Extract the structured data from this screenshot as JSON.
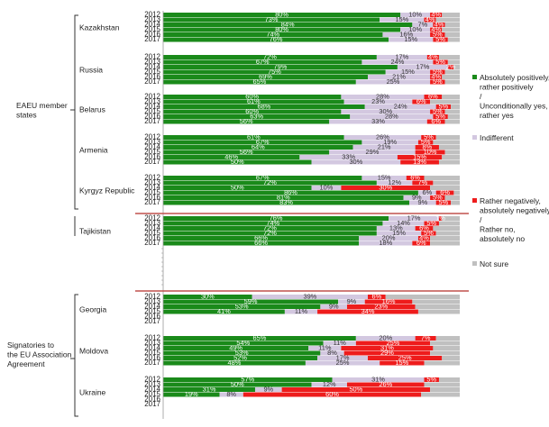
{
  "chart_data": {
    "type": "bar",
    "stacked": true,
    "orientation": "horizontal",
    "xlim": [
      0,
      100
    ],
    "grid": false,
    "legend_placement": "right",
    "colors": {
      "positive": "#1a8a1a",
      "indifferent": "#d3c8e0",
      "negative": "#ee1c1c",
      "not_sure": "#c0c0c0"
    },
    "series": [
      {
        "key": "positive",
        "name": "Absolutely positively, rather positively / Unconditionally yes, rather yes"
      },
      {
        "key": "indifferent",
        "name": "Indifferent"
      },
      {
        "key": "negative",
        "name": "Rather negatively, absolutely negatively / Rather no, absolutely no"
      },
      {
        "key": "not_sure",
        "name": "Not sure"
      }
    ],
    "bracket_labels": [
      {
        "label": "EAEU member states",
        "from_group": 0,
        "to_group": 5
      },
      {
        "label": "Signatories to the EU Association Agreement",
        "from_group": 6,
        "to_group": 8
      }
    ],
    "groups": [
      {
        "label": "Kazakhstan",
        "rows": [
          {
            "year": "2012",
            "positive": 80,
            "indifferent": 10,
            "negative": 4,
            "not_sure": 6,
            "labels": [
              "80%",
              "10%",
              "4%"
            ]
          },
          {
            "year": "2013",
            "positive": 73,
            "indifferent": 15,
            "negative": 4,
            "not_sure": 8,
            "labels": [
              "73%",
              "15%",
              "4%"
            ]
          },
          {
            "year": "2014",
            "positive": 84,
            "indifferent": 7,
            "negative": 4,
            "not_sure": 5,
            "labels": [
              "84%",
              "7%",
              "4%"
            ]
          },
          {
            "year": "2015",
            "positive": 80,
            "indifferent": 10,
            "negative": 4,
            "not_sure": 6,
            "labels": [
              "80%",
              "10%",
              "4%"
            ]
          },
          {
            "year": "2016",
            "positive": 74,
            "indifferent": 16,
            "negative": 5,
            "not_sure": 5,
            "labels": [
              "74%",
              "16%",
              "5%"
            ]
          },
          {
            "year": "2017",
            "positive": 76,
            "indifferent": 15,
            "negative": 5,
            "not_sure": 4,
            "labels": [
              "76%",
              "15%",
              "5%"
            ]
          }
        ]
      },
      {
        "label": "Russia",
        "rows": [
          {
            "year": "2012",
            "positive": 72,
            "indifferent": 17,
            "negative": 4,
            "not_sure": 7,
            "labels": [
              "72%",
              "17%",
              "4%"
            ]
          },
          {
            "year": "2013",
            "positive": 67,
            "indifferent": 24,
            "negative": 5,
            "not_sure": 4,
            "labels": [
              "67%",
              "24%",
              "5%"
            ]
          },
          {
            "year": "2014",
            "positive": 79,
            "indifferent": 17,
            "negative": 2,
            "not_sure": 2,
            "labels": [
              "79%",
              "17%",
              "2%"
            ]
          },
          {
            "year": "2015",
            "positive": 75,
            "indifferent": 15,
            "negative": 5,
            "not_sure": 5,
            "labels": [
              "75%",
              "15%",
              "5%"
            ]
          },
          {
            "year": "2016",
            "positive": 69,
            "indifferent": 21,
            "negative": 4,
            "not_sure": 6,
            "labels": [
              "69%",
              "21%",
              "4%"
            ]
          },
          {
            "year": "2017",
            "positive": 65,
            "indifferent": 25,
            "negative": 5,
            "not_sure": 5,
            "labels": [
              "65%",
              "25%",
              "5%"
            ]
          }
        ]
      },
      {
        "label": "Belarus",
        "rows": [
          {
            "year": "2012",
            "positive": 60,
            "indifferent": 28,
            "negative": 6,
            "not_sure": 6,
            "labels": [
              "60%",
              "28%",
              "6%"
            ]
          },
          {
            "year": "2013",
            "positive": 61,
            "indifferent": 23,
            "negative": 6,
            "not_sure": 10,
            "labels": [
              "61%",
              "23%",
              "6%"
            ]
          },
          {
            "year": "2014",
            "positive": 68,
            "indifferent": 24,
            "negative": 5,
            "not_sure": 3,
            "labels": [
              "68%",
              "24%",
              "5%"
            ]
          },
          {
            "year": "2015",
            "positive": 60,
            "indifferent": 30,
            "negative": 5,
            "not_sure": 5,
            "labels": [
              "60%",
              "30%",
              "5%"
            ]
          },
          {
            "year": "2016",
            "positive": 63,
            "indifferent": 28,
            "negative": 5,
            "not_sure": 4,
            "labels": [
              "63%",
              "28%",
              "5%"
            ]
          },
          {
            "year": "2017",
            "positive": 56,
            "indifferent": 33,
            "negative": 6,
            "not_sure": 5,
            "labels": [
              "56%",
              "33%",
              "6%"
            ]
          }
        ]
      },
      {
        "label": "Armenia",
        "rows": [
          {
            "year": "2012",
            "positive": 61,
            "indifferent": 26,
            "negative": 5,
            "not_sure": 8,
            "labels": [
              "61%",
              "26%",
              "5%"
            ]
          },
          {
            "year": "2013",
            "positive": 67,
            "indifferent": 19,
            "negative": 5,
            "not_sure": 9,
            "labels": [
              "67%",
              "19%",
              "5%"
            ]
          },
          {
            "year": "2014",
            "positive": 64,
            "indifferent": 21,
            "negative": 8,
            "not_sure": 7,
            "labels": [
              "64%",
              "21%",
              "8%"
            ]
          },
          {
            "year": "2015",
            "positive": 56,
            "indifferent": 29,
            "negative": 10,
            "not_sure": 5,
            "labels": [
              "56%",
              "29%",
              "10%"
            ]
          },
          {
            "year": "2016",
            "positive": 46,
            "indifferent": 33,
            "negative": 15,
            "not_sure": 6,
            "labels": [
              "46%",
              "33%",
              "15%"
            ]
          },
          {
            "year": "2017",
            "positive": 50,
            "indifferent": 30,
            "negative": 13,
            "not_sure": 7,
            "labels": [
              "50%",
              "30%",
              "13%"
            ]
          }
        ]
      },
      {
        "label": "Kyrgyz Republic",
        "rows": [
          {
            "year": "2012",
            "positive": 67,
            "indifferent": 15,
            "negative": 6,
            "not_sure": 12,
            "labels": [
              "67%",
              "15%",
              "6%"
            ]
          },
          {
            "year": "2013",
            "positive": 72,
            "indifferent": 12,
            "negative": 7,
            "not_sure": 9,
            "labels": [
              "72%",
              "12%",
              "7%"
            ]
          },
          {
            "year": "2014",
            "positive": 50,
            "indifferent": 10,
            "negative": 30,
            "not_sure": 10,
            "labels": [
              "50%",
              "10%",
              "30%"
            ]
          },
          {
            "year": "2015",
            "positive": 86,
            "indifferent": 6,
            "negative": 6,
            "not_sure": 2,
            "labels": [
              "86%",
              "6%",
              "6%"
            ]
          },
          {
            "year": "2016",
            "positive": 81,
            "indifferent": 9,
            "negative": 5,
            "not_sure": 5,
            "labels": [
              "81%",
              "9%",
              "5%"
            ]
          },
          {
            "year": "2017",
            "positive": 83,
            "indifferent": 9,
            "negative": 5,
            "not_sure": 3,
            "labels": [
              "83%",
              "9%",
              "5%"
            ]
          }
        ]
      },
      {
        "label": "Tajikistan",
        "rows": [
          {
            "year": "2012",
            "positive": 76,
            "indifferent": 17,
            "negative": 1,
            "not_sure": 6,
            "labels": [
              "76%",
              "17%",
              "1%"
            ]
          },
          {
            "year": "2013",
            "positive": 74,
            "indifferent": 14,
            "negative": 5,
            "not_sure": 7,
            "labels": [
              "74%",
              "14%",
              "5%"
            ]
          },
          {
            "year": "2014",
            "positive": 72,
            "indifferent": 13,
            "negative": 6,
            "not_sure": 9,
            "labels": [
              "72%",
              "13%",
              "6%"
            ]
          },
          {
            "year": "2015",
            "positive": 72,
            "indifferent": 15,
            "negative": 5,
            "not_sure": 8,
            "labels": [
              "72%",
              "15%",
              "5%"
            ]
          },
          {
            "year": "2016",
            "positive": 66,
            "indifferent": 20,
            "negative": 4,
            "not_sure": 10,
            "labels": [
              "66%",
              "20%",
              "4%"
            ]
          },
          {
            "year": "2017",
            "positive": 66,
            "indifferent": 18,
            "negative": 6,
            "not_sure": 10,
            "labels": [
              "66%",
              "18%",
              "6%"
            ]
          }
        ]
      },
      {
        "label": "Georgia",
        "rows": [
          {
            "year": "2012",
            "positive": 30,
            "indifferent": 39,
            "negative": 6,
            "not_sure": 25,
            "labels": [
              "30%",
              "39%",
              "6%"
            ]
          },
          {
            "year": "2013",
            "positive": 59,
            "indifferent": 9,
            "negative": 16,
            "not_sure": 16,
            "labels": [
              "59%",
              "9%",
              "16%"
            ]
          },
          {
            "year": "2014",
            "positive": 53,
            "indifferent": 9,
            "negative": 23,
            "not_sure": 15,
            "labels": [
              "53%",
              "9%",
              "23%"
            ]
          },
          {
            "year": "2015",
            "positive": 41,
            "indifferent": 11,
            "negative": 34,
            "not_sure": 14,
            "labels": [
              "41%",
              "11%",
              "34%"
            ]
          },
          {
            "year": "2016",
            "positive": null,
            "indifferent": null,
            "negative": null,
            "not_sure": null,
            "labels": []
          },
          {
            "year": "2017",
            "positive": null,
            "indifferent": null,
            "negative": null,
            "not_sure": null,
            "labels": []
          }
        ]
      },
      {
        "label": "Moldova",
        "rows": [
          {
            "year": "2012",
            "positive": 65,
            "indifferent": 20,
            "negative": 7,
            "not_sure": 8,
            "labels": [
              "65%",
              "20%",
              "7%"
            ]
          },
          {
            "year": "2013",
            "positive": 54,
            "indifferent": 11,
            "negative": 25,
            "not_sure": 10,
            "labels": [
              "54%",
              "11%",
              "25%"
            ]
          },
          {
            "year": "2014",
            "positive": 49,
            "indifferent": 11,
            "negative": 31,
            "not_sure": 9,
            "labels": [
              "49%",
              "11%",
              "31%"
            ]
          },
          {
            "year": "2015",
            "positive": 53,
            "indifferent": 8,
            "negative": 29,
            "not_sure": 10,
            "labels": [
              "53%",
              "8%",
              "29%"
            ]
          },
          {
            "year": "2016",
            "positive": 52,
            "indifferent": 17,
            "negative": 25,
            "not_sure": 6,
            "labels": [
              "52%",
              "17%",
              "25%"
            ]
          },
          {
            "year": "2017",
            "positive": 48,
            "indifferent": 25,
            "negative": 15,
            "not_sure": 12,
            "labels": [
              "48%",
              "25%",
              "15%"
            ]
          }
        ]
      },
      {
        "label": "Ukraine",
        "rows": [
          {
            "year": "2012",
            "positive": 57,
            "indifferent": 31,
            "negative": 5,
            "not_sure": 7,
            "labels": [
              "57%",
              "31%",
              "5%"
            ]
          },
          {
            "year": "2013",
            "positive": 50,
            "indifferent": 12,
            "negative": 26,
            "not_sure": 12,
            "labels": [
              "50%",
              "12%",
              "26%"
            ]
          },
          {
            "year": "2014",
            "positive": 31,
            "indifferent": 9,
            "negative": 50,
            "not_sure": 10,
            "labels": [
              "31%",
              "9%",
              "50%"
            ]
          },
          {
            "year": "2015",
            "positive": 19,
            "indifferent": 8,
            "negative": 60,
            "not_sure": 13,
            "labels": [
              "19%",
              "8%",
              "60%"
            ]
          },
          {
            "year": "2016",
            "positive": null,
            "indifferent": null,
            "negative": null,
            "not_sure": null,
            "labels": []
          },
          {
            "year": "2017",
            "positive": null,
            "indifferent": null,
            "negative": null,
            "not_sure": null,
            "labels": []
          }
        ]
      }
    ]
  }
}
